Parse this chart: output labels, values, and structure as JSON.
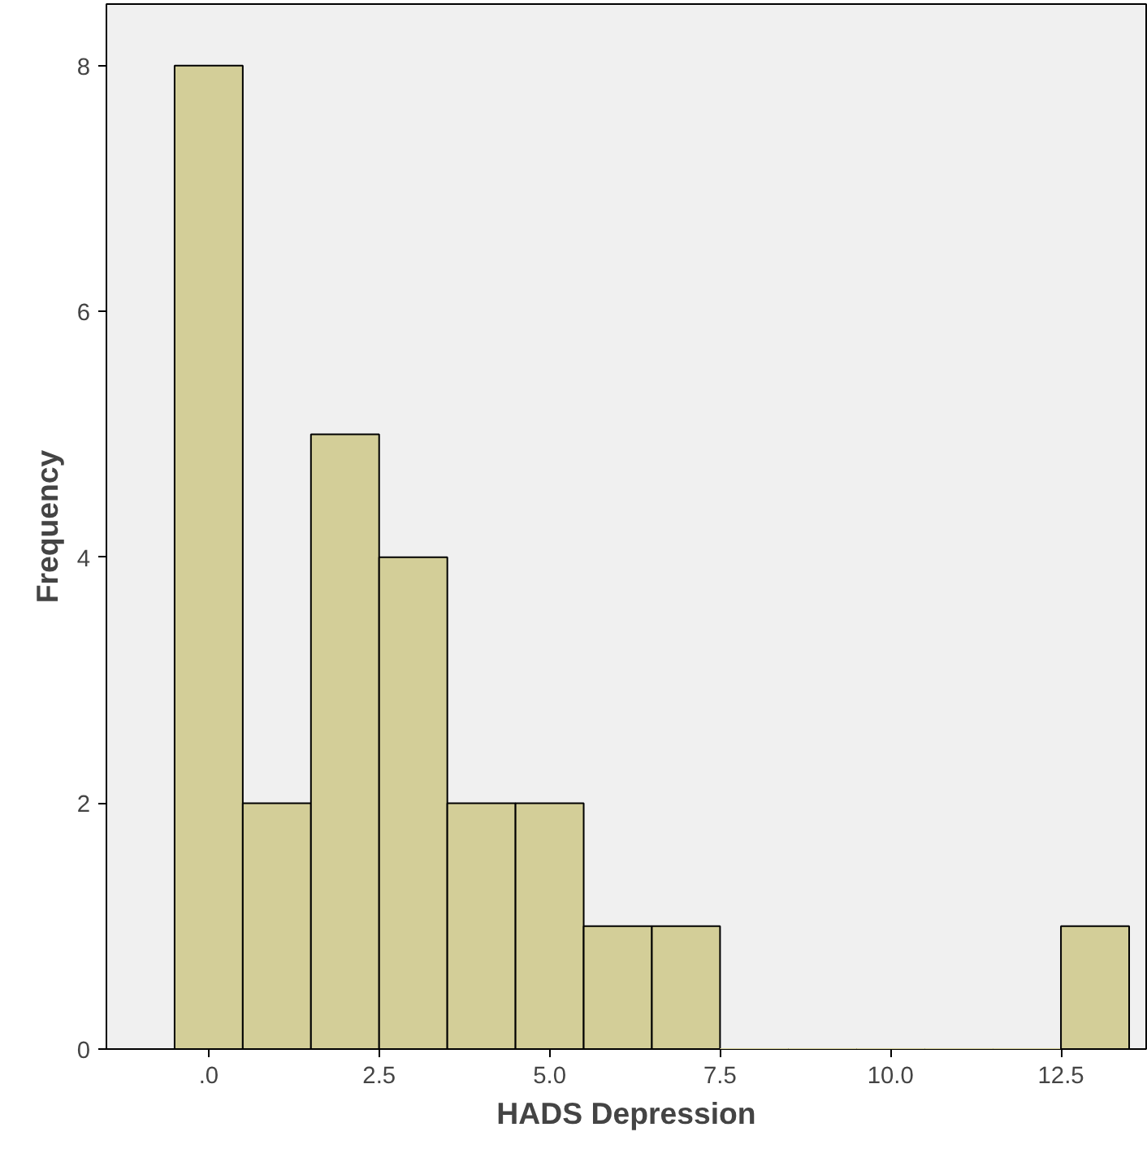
{
  "chart_data": {
    "type": "histogram",
    "xlabel": "HADS Depression",
    "ylabel": "Frequency",
    "bins": [
      -0.5,
      0.5,
      1.5,
      2.5,
      3.5,
      4.5,
      5.5,
      6.5,
      7.5,
      8.5,
      9.5,
      10.5,
      11.5,
      12.5,
      13.5
    ],
    "values": [
      8,
      2,
      5,
      4,
      2,
      2,
      1,
      1,
      0,
      0,
      0,
      0,
      0,
      1
    ],
    "color": "#d3ce98",
    "xlim": [
      -1.5,
      13.75
    ],
    "ylim": [
      0,
      8.5
    ],
    "xticks": [
      {
        "value": 0,
        "label": ".0"
      },
      {
        "value": 2.5,
        "label": "2.5"
      },
      {
        "value": 5,
        "label": "5.0"
      },
      {
        "value": 7.5,
        "label": "7.5"
      },
      {
        "value": 10,
        "label": "10.0"
      },
      {
        "value": 12.5,
        "label": "12.5"
      }
    ],
    "yticks": [
      0,
      2,
      4,
      6,
      8
    ],
    "grid": false
  }
}
